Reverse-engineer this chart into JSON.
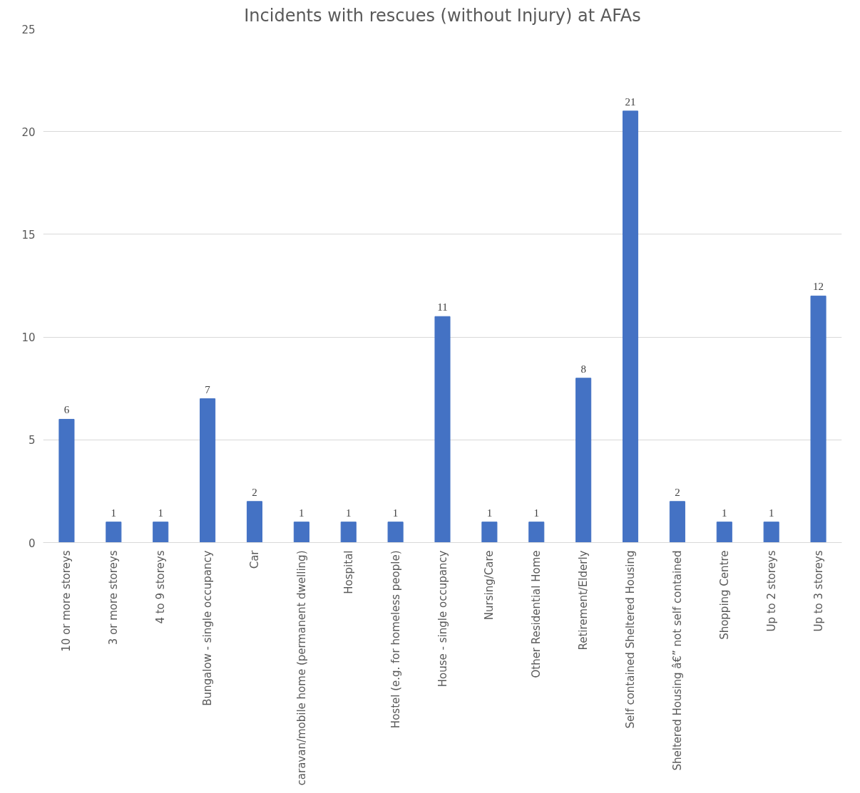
{
  "chart_data": {
    "type": "bar",
    "title": "Incidents with rescues (without Injury) at AFAs",
    "categories": [
      "10 or more storeys",
      "3 or more storeys",
      "4 to 9 storeys",
      "Bungalow - single occupancy",
      "Car",
      "caravan/mobile home (permanent dwelling)",
      "Hospital",
      "Hostel (e.g. for homeless people)",
      "House - single occupancy",
      "Nursing/Care",
      "Other Residential Home",
      "Retirement/Elderly",
      "Self contained Sheltered Housing",
      "Sheltered Housing â€” not self contained",
      "Shopping Centre",
      "Up to 2 storeys",
      "Up to 3 storeys"
    ],
    "values": [
      6,
      1,
      1,
      7,
      2,
      1,
      1,
      1,
      11,
      1,
      1,
      8,
      21,
      2,
      1,
      1,
      12
    ],
    "color": "#4472c4",
    "ylim": [
      0,
      25
    ],
    "yticks": [
      0,
      5,
      10,
      15,
      20,
      25
    ],
    "grid": "y",
    "data_labels": true
  }
}
